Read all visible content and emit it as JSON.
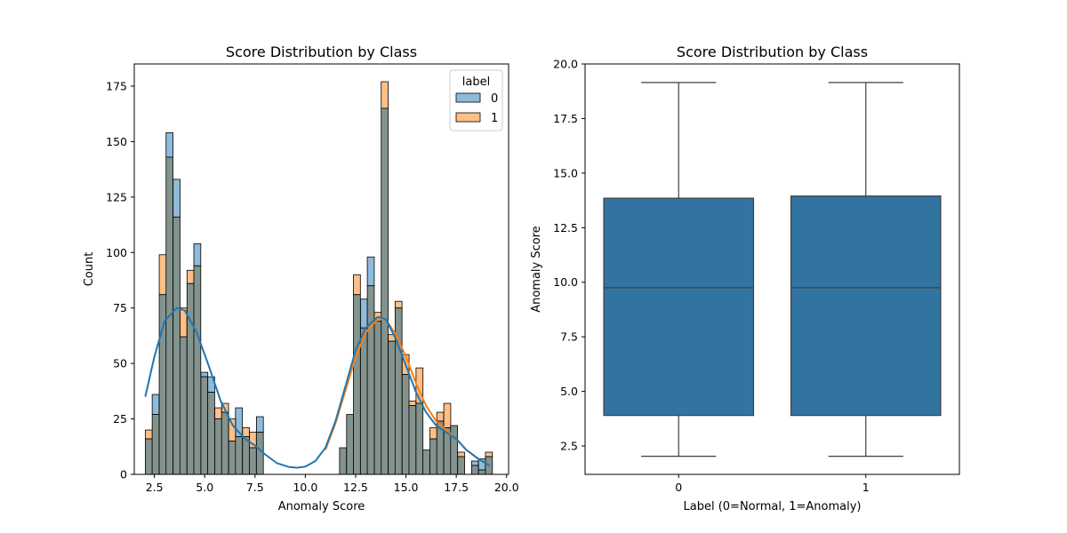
{
  "chart_data": [
    {
      "type": "histogram",
      "title": "Score Distribution by Class",
      "xlabel": "Anomaly Score",
      "ylabel": "Count",
      "xlim": [
        1.5,
        20.1
      ],
      "ylim": [
        0,
        185
      ],
      "xticks": [
        "2.5",
        "5.0",
        "7.5",
        "10.0",
        "12.5",
        "15.0",
        "17.5",
        "20.0"
      ],
      "yticks": [
        "0",
        "25",
        "50",
        "75",
        "100",
        "125",
        "150",
        "175"
      ],
      "bin_width": 0.345,
      "legend": {
        "title": "label",
        "position": "upper right",
        "entries": [
          "0",
          "1"
        ]
      },
      "colors": {
        "class0": "#1f77b4",
        "class1": "#ff7f0e",
        "overlap": "#83938e"
      },
      "series": [
        {
          "name": "0",
          "color": "#1f77b4",
          "bins": [
            [
              2.05,
              16
            ],
            [
              2.39,
              36
            ],
            [
              2.74,
              81
            ],
            [
              3.08,
              154
            ],
            [
              3.43,
              133
            ],
            [
              3.77,
              62
            ],
            [
              4.12,
              86
            ],
            [
              4.46,
              104
            ],
            [
              4.81,
              46
            ],
            [
              5.15,
              44
            ],
            [
              5.5,
              25
            ],
            [
              5.84,
              28
            ],
            [
              6.19,
              15
            ],
            [
              6.53,
              30
            ],
            [
              6.88,
              17
            ],
            [
              7.22,
              12
            ],
            [
              7.57,
              26
            ],
            [
              11.7,
              12
            ],
            [
              12.05,
              27
            ],
            [
              12.39,
              81
            ],
            [
              12.74,
              79
            ],
            [
              13.08,
              98
            ],
            [
              13.43,
              69
            ],
            [
              13.77,
              165
            ],
            [
              14.12,
              60
            ],
            [
              14.46,
              75
            ],
            [
              14.81,
              45
            ],
            [
              15.15,
              31
            ],
            [
              15.5,
              32
            ],
            [
              15.84,
              11
            ],
            [
              16.19,
              16
            ],
            [
              16.53,
              24
            ],
            [
              16.88,
              21
            ],
            [
              17.22,
              22
            ],
            [
              17.57,
              8
            ],
            [
              17.91,
              0
            ],
            [
              18.26,
              6
            ],
            [
              18.6,
              7
            ],
            [
              18.95,
              8
            ]
          ]
        },
        {
          "name": "1",
          "color": "#ff7f0e",
          "bins": [
            [
              2.05,
              20
            ],
            [
              2.39,
              27
            ],
            [
              2.74,
              99
            ],
            [
              3.08,
              143
            ],
            [
              3.43,
              116
            ],
            [
              3.77,
              75
            ],
            [
              4.12,
              92
            ],
            [
              4.46,
              94
            ],
            [
              4.81,
              44
            ],
            [
              5.15,
              37
            ],
            [
              5.5,
              30
            ],
            [
              5.84,
              32
            ],
            [
              6.19,
              25
            ],
            [
              6.53,
              17
            ],
            [
              6.88,
              21
            ],
            [
              7.22,
              19
            ],
            [
              7.57,
              19
            ],
            [
              11.7,
              12
            ],
            [
              12.05,
              27
            ],
            [
              12.39,
              90
            ],
            [
              12.74,
              66
            ],
            [
              13.08,
              85
            ],
            [
              13.43,
              73
            ],
            [
              13.77,
              177
            ],
            [
              14.12,
              63
            ],
            [
              14.46,
              78
            ],
            [
              14.81,
              54
            ],
            [
              15.15,
              33
            ],
            [
              15.5,
              48
            ],
            [
              15.84,
              11
            ],
            [
              16.19,
              21
            ],
            [
              16.53,
              28
            ],
            [
              16.88,
              32
            ],
            [
              17.22,
              22
            ],
            [
              17.57,
              10
            ],
            [
              17.91,
              0
            ],
            [
              18.26,
              4
            ],
            [
              18.6,
              2
            ],
            [
              18.95,
              10
            ]
          ]
        }
      ],
      "kde": [
        {
          "name": "0",
          "color": "#1f77b4",
          "points": [
            [
              2.05,
              35
            ],
            [
              2.5,
              53
            ],
            [
              3.0,
              69
            ],
            [
              3.6,
              75
            ],
            [
              4.0,
              74
            ],
            [
              4.6,
              64
            ],
            [
              5.2,
              49
            ],
            [
              5.8,
              33
            ],
            [
              6.4,
              22
            ],
            [
              7.0,
              16
            ],
            [
              7.5,
              13
            ],
            [
              8.0,
              9
            ],
            [
              8.6,
              5
            ],
            [
              9.2,
              3.3
            ],
            [
              9.6,
              3
            ],
            [
              10.0,
              3.5
            ],
            [
              10.5,
              6
            ],
            [
              11.0,
              12
            ],
            [
              11.5,
              24
            ],
            [
              12.0,
              40
            ],
            [
              12.5,
              56
            ],
            [
              13.0,
              66
            ],
            [
              13.6,
              71
            ],
            [
              14.0,
              70
            ],
            [
              14.5,
              61
            ],
            [
              15.0,
              49
            ],
            [
              15.5,
              37
            ],
            [
              16.0,
              28
            ],
            [
              16.5,
              22
            ],
            [
              17.0,
              19
            ],
            [
              17.5,
              16
            ],
            [
              18.0,
              11
            ],
            [
              18.6,
              7
            ],
            [
              19.15,
              4
            ]
          ]
        },
        {
          "name": "1",
          "color": "#ff7f0e",
          "points": [
            [
              11.0,
              11
            ],
            [
              11.5,
              23
            ],
            [
              12.0,
              38
            ],
            [
              12.5,
              53
            ],
            [
              13.0,
              64
            ],
            [
              13.6,
              70
            ],
            [
              14.0,
              70
            ],
            [
              14.5,
              63
            ],
            [
              15.0,
              53
            ],
            [
              15.5,
              41
            ],
            [
              16.0,
              31
            ],
            [
              16.5,
              24
            ],
            [
              17.0,
              20
            ],
            [
              17.5,
              16
            ],
            [
              18.0,
              11
            ],
            [
              18.6,
              7
            ],
            [
              19.15,
              4
            ]
          ]
        }
      ]
    },
    {
      "type": "box",
      "title": "Score Distribution by Class",
      "xlabel": "Label (0=Normal, 1=Anomaly)",
      "ylabel": "Anomaly Score",
      "ylim": [
        1.2,
        20.0
      ],
      "yticks": [
        "2.5",
        "5.0",
        "7.5",
        "10.0",
        "12.5",
        "15.0",
        "17.5",
        "20.0"
      ],
      "categories": [
        "0",
        "1"
      ],
      "color": "#3274a1",
      "boxes": [
        {
          "name": "0",
          "min": 2.03,
          "q1": 3.9,
          "median": 9.75,
          "q3": 13.85,
          "max": 19.15
        },
        {
          "name": "1",
          "min": 2.03,
          "q1": 3.9,
          "median": 9.75,
          "q3": 13.95,
          "max": 19.15
        }
      ]
    }
  ]
}
